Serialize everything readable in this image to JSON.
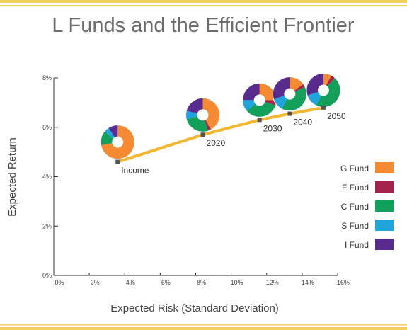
{
  "chart_data": {
    "type": "scatter",
    "title": "L Funds and the Efficient Frontier",
    "xlabel": "Expected Risk (Standard Deviation)",
    "ylabel": "Expected Return",
    "xlim": [
      0,
      16
    ],
    "ylim": [
      0,
      8
    ],
    "x_ticks": [
      "0%",
      "2%",
      "4%",
      "6%",
      "8%",
      "10%",
      "12%",
      "14%",
      "16%"
    ],
    "y_ticks": [
      "0%",
      "2%",
      "4%",
      "6%",
      "8%"
    ],
    "frontier_color": "#f2b731",
    "points": [
      {
        "label": "Income",
        "x": 3.6,
        "y": 4.6,
        "donut": {
          "x": 3.6,
          "y": 5.4,
          "slices": [
            0.72,
            0.0,
            0.14,
            0.05,
            0.09
          ]
        }
      },
      {
        "label": "2020",
        "x": 8.4,
        "y": 5.7,
        "donut": {
          "x": 8.4,
          "y": 6.5,
          "slices": [
            0.42,
            0.03,
            0.26,
            0.08,
            0.21
          ]
        }
      },
      {
        "label": "2030",
        "x": 11.6,
        "y": 6.3,
        "donut": {
          "x": 11.6,
          "y": 7.1,
          "slices": [
            0.25,
            0.05,
            0.34,
            0.11,
            0.25
          ]
        }
      },
      {
        "label": "2040",
        "x": 13.3,
        "y": 6.55,
        "donut": {
          "x": 13.3,
          "y": 7.35,
          "slices": [
            0.15,
            0.03,
            0.4,
            0.12,
            0.3
          ]
        }
      },
      {
        "label": "2050",
        "x": 15.2,
        "y": 6.8,
        "donut": {
          "x": 15.2,
          "y": 7.5,
          "slices": [
            0.08,
            0.04,
            0.45,
            0.13,
            0.3
          ]
        }
      }
    ]
  },
  "legend": [
    {
      "label": "G Fund",
      "color": "#f58a33"
    },
    {
      "label": "F Fund",
      "color": "#a4224b"
    },
    {
      "label": "C Fund",
      "color": "#13a05a"
    },
    {
      "label": "S Fund",
      "color": "#1fa4dd"
    },
    {
      "label": "I Fund",
      "color": "#5a2b8e"
    }
  ],
  "colors": {
    "accent_border": "#f4cf62",
    "title": "#6c6c6c",
    "axis": "#333333",
    "label_text": "#444444"
  }
}
